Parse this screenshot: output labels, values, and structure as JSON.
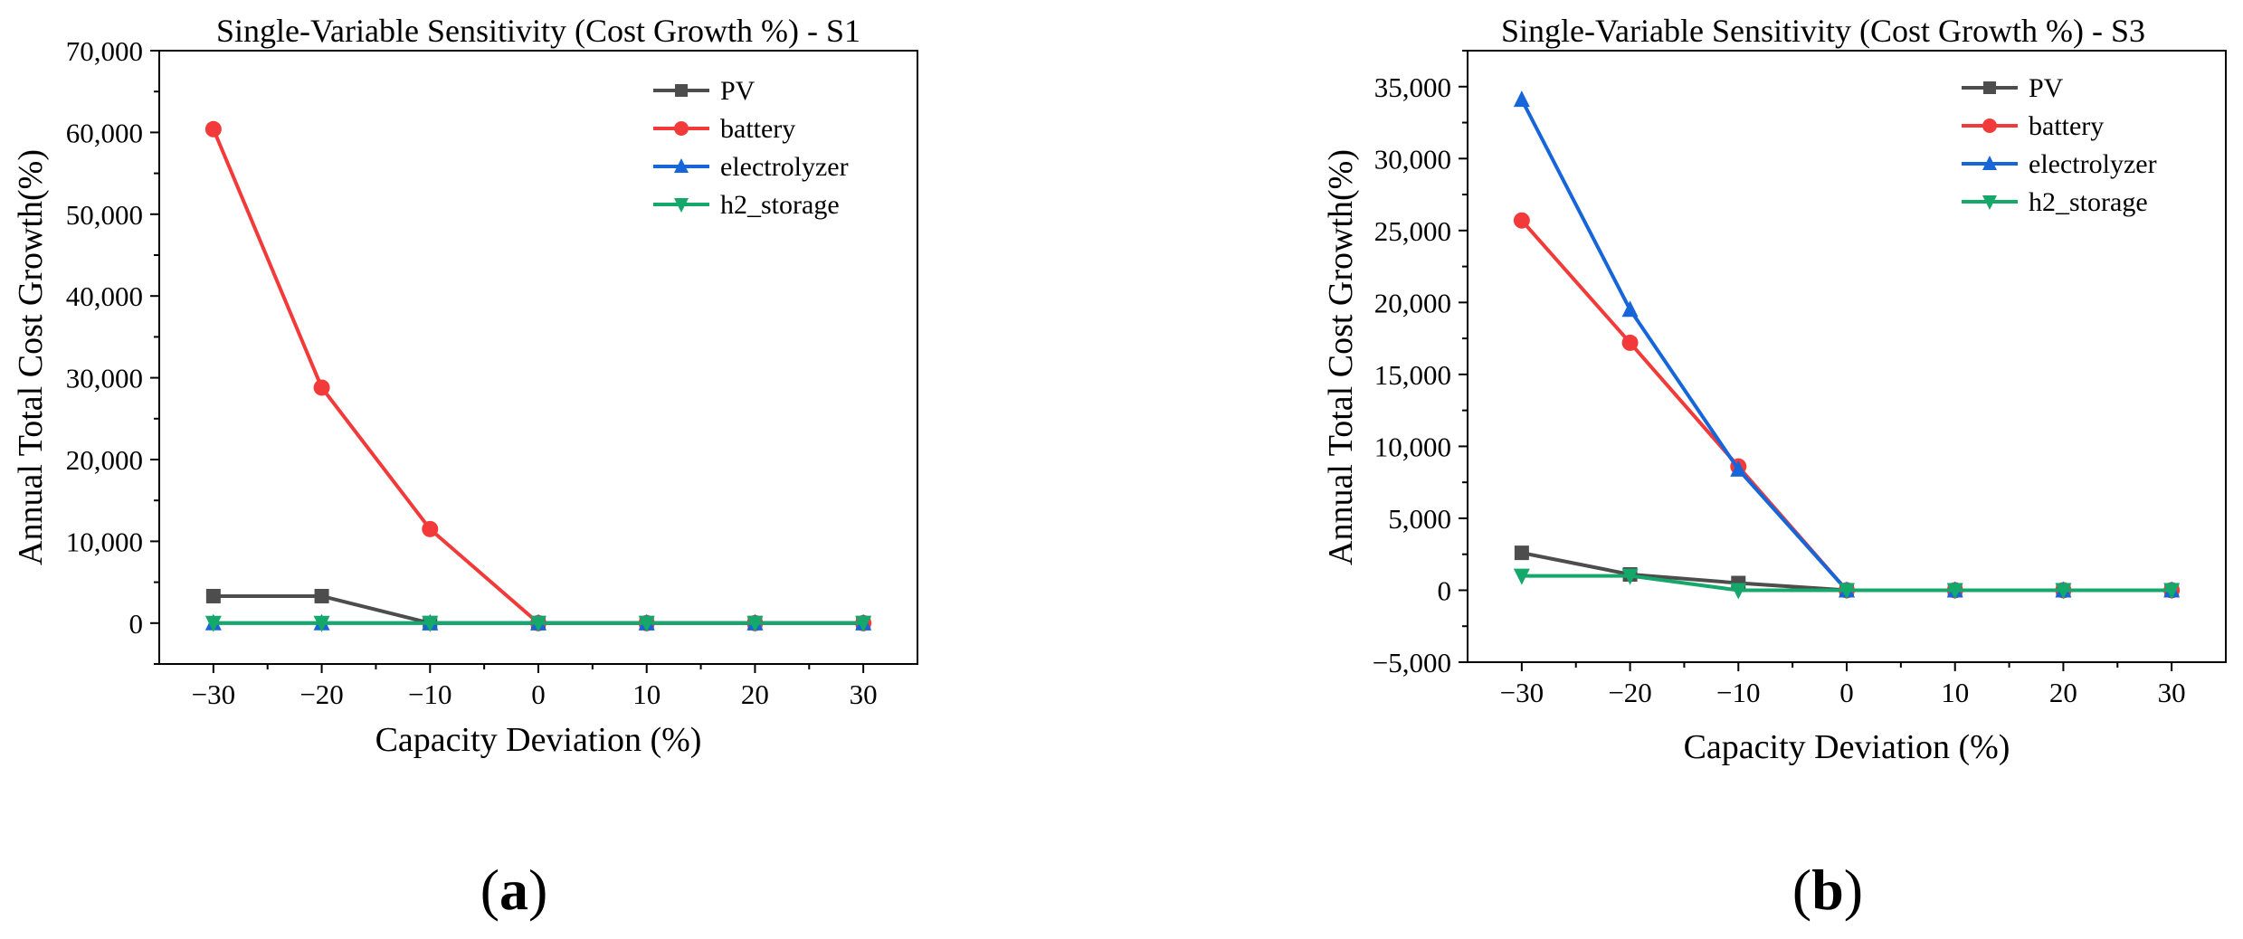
{
  "chart_data": [
    {
      "type": "line",
      "panel_label": {
        "open": "(",
        "letter": "a",
        "close": ")"
      },
      "title": "Single-Variable Sensitivity (Cost Growth %) - S1",
      "xlabel": "Capacity Deviation (%)",
      "ylabel": "Annual Total Cost Growth(%)",
      "x": [
        -30,
        -20,
        -10,
        0,
        10,
        20,
        30
      ],
      "xlim": [
        -35,
        35
      ],
      "ylim": [
        -5000,
        70000
      ],
      "xticks": [
        -30,
        -20,
        -10,
        0,
        10,
        20,
        30
      ],
      "xtick_labels": [
        "−30",
        "−20",
        "−10",
        "0",
        "10",
        "20",
        "30"
      ],
      "yticks": [
        0,
        10000,
        20000,
        30000,
        40000,
        50000,
        60000,
        70000
      ],
      "ytick_labels": [
        "0",
        "10,000",
        "20,000",
        "30,000",
        "40,000",
        "50,000",
        "60,000",
        "70,000"
      ],
      "legend_position": "top-right",
      "series": [
        {
          "name": "PV",
          "color": "#4d4d4d",
          "marker": "square",
          "values": [
            3300,
            3300,
            0,
            0,
            0,
            0,
            0
          ]
        },
        {
          "name": "battery",
          "color": "#f23a3a",
          "marker": "circle",
          "values": [
            60400,
            28800,
            11500,
            0,
            0,
            0,
            0
          ]
        },
        {
          "name": "electrolyzer",
          "color": "#1766d9",
          "marker": "triangle-up",
          "values": [
            0,
            0,
            0,
            0,
            0,
            0,
            0
          ]
        },
        {
          "name": "h2_storage",
          "color": "#14a86b",
          "marker": "triangle-down",
          "values": [
            0,
            0,
            0,
            0,
            0,
            0,
            0
          ]
        }
      ]
    },
    {
      "type": "line",
      "panel_label": {
        "open": "(",
        "letter": "b",
        "close": ")"
      },
      "title": "Single-Variable Sensitivity (Cost Growth %) - S3",
      "xlabel": "Capacity Deviation (%)",
      "ylabel": "Annual Total Cost Growth(%)",
      "x": [
        -30,
        -20,
        -10,
        0,
        10,
        20,
        30
      ],
      "xlim": [
        -35,
        35
      ],
      "ylim": [
        -5000,
        37500
      ],
      "xticks": [
        -30,
        -20,
        -10,
        0,
        10,
        20,
        30
      ],
      "xtick_labels": [
        "−30",
        "−20",
        "−10",
        "0",
        "10",
        "20",
        "30"
      ],
      "yticks": [
        -5000,
        0,
        5000,
        10000,
        15000,
        20000,
        25000,
        30000,
        35000
      ],
      "ytick_labels": [
        "−5,000",
        "0",
        "5,000",
        "10,000",
        "15,000",
        "20,000",
        "25,000",
        "30,000",
        "35,000"
      ],
      "legend_position": "top-right",
      "series": [
        {
          "name": "PV",
          "color": "#4d4d4d",
          "marker": "square",
          "values": [
            2600,
            1100,
            500,
            0,
            0,
            0,
            0
          ]
        },
        {
          "name": "battery",
          "color": "#f23a3a",
          "marker": "circle",
          "values": [
            25700,
            17200,
            8600,
            0,
            0,
            0,
            0
          ]
        },
        {
          "name": "electrolyzer",
          "color": "#1766d9",
          "marker": "triangle-up",
          "values": [
            34100,
            19500,
            8400,
            0,
            0,
            0,
            0
          ]
        },
        {
          "name": "h2_storage",
          "color": "#14a86b",
          "marker": "triangle-down",
          "values": [
            1000,
            1000,
            0,
            0,
            0,
            0,
            0
          ]
        }
      ]
    }
  ]
}
